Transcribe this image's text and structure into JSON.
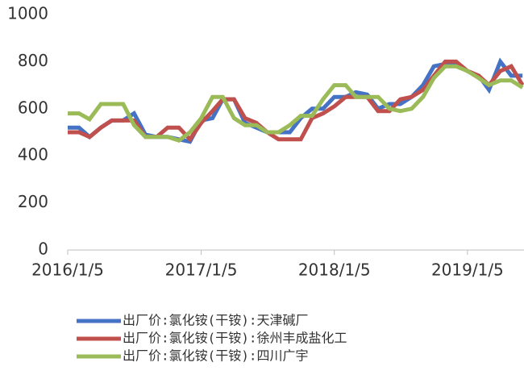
{
  "chart_data": {
    "type": "line",
    "x": [
      "2016-01-05",
      "2016-02-05",
      "2016-03-05",
      "2016-04-05",
      "2016-05-05",
      "2016-06-05",
      "2016-07-05",
      "2016-08-05",
      "2016-09-05",
      "2016-10-05",
      "2016-11-05",
      "2016-12-05",
      "2017-01-05",
      "2017-02-05",
      "2017-03-05",
      "2017-04-05",
      "2017-05-05",
      "2017-06-05",
      "2017-07-05",
      "2017-08-05",
      "2017-09-05",
      "2017-10-05",
      "2017-11-05",
      "2017-12-05",
      "2018-01-05",
      "2018-02-05",
      "2018-03-05",
      "2018-04-05",
      "2018-05-05",
      "2018-06-05",
      "2018-07-05",
      "2018-08-05",
      "2018-09-05",
      "2018-10-05",
      "2018-11-05",
      "2018-12-05",
      "2019-01-05",
      "2019-02-05",
      "2019-03-05",
      "2019-04-05",
      "2019-05-05",
      "2019-06-05"
    ],
    "series": [
      {
        "name": "出厂价:氯化铵(干铵):天津碱厂",
        "color": "#4472c4",
        "values": [
          520,
          520,
          480,
          520,
          550,
          550,
          580,
          490,
          480,
          480,
          470,
          460,
          550,
          560,
          640,
          640,
          540,
          520,
          500,
          500,
          500,
          560,
          600,
          600,
          650,
          650,
          670,
          660,
          600,
          620,
          620,
          650,
          700,
          780,
          790,
          790,
          760,
          740,
          680,
          800,
          740,
          740
        ]
      },
      {
        "name": "出厂价:氯化铵(干铵):徐州丰成盐化工",
        "color": "#c0504d",
        "values": [
          500,
          500,
          480,
          520,
          550,
          550,
          550,
          480,
          480,
          520,
          520,
          470,
          540,
          590,
          640,
          640,
          560,
          540,
          500,
          470,
          470,
          470,
          560,
          580,
          610,
          650,
          650,
          650,
          590,
          590,
          640,
          650,
          680,
          740,
          800,
          800,
          760,
          740,
          700,
          760,
          780,
          700
        ]
      },
      {
        "name": "出厂价:氯化铵(干铵):四川广宇",
        "color": "#9bbb59",
        "values": [
          580,
          580,
          555,
          620,
          620,
          620,
          530,
          480,
          480,
          480,
          465,
          500,
          560,
          650,
          650,
          560,
          530,
          530,
          500,
          500,
          530,
          570,
          570,
          640,
          700,
          700,
          650,
          650,
          650,
          600,
          590,
          600,
          650,
          730,
          780,
          780,
          760,
          730,
          700,
          720,
          720,
          690
        ]
      }
    ],
    "xlim": [
      "2016-01-05",
      "2019-06-09"
    ],
    "xticks": [
      {
        "value": "2016-01-05",
        "label": "2016/1/5"
      },
      {
        "value": "2017-01-05",
        "label": "2017/1/5"
      },
      {
        "value": "2018-01-05",
        "label": "2018/1/5"
      },
      {
        "value": "2019-01-05",
        "label": "2019/1/5"
      }
    ],
    "ylim": [
      0,
      1000
    ],
    "yticks": [
      0,
      200,
      400,
      600,
      800,
      1000
    ]
  }
}
